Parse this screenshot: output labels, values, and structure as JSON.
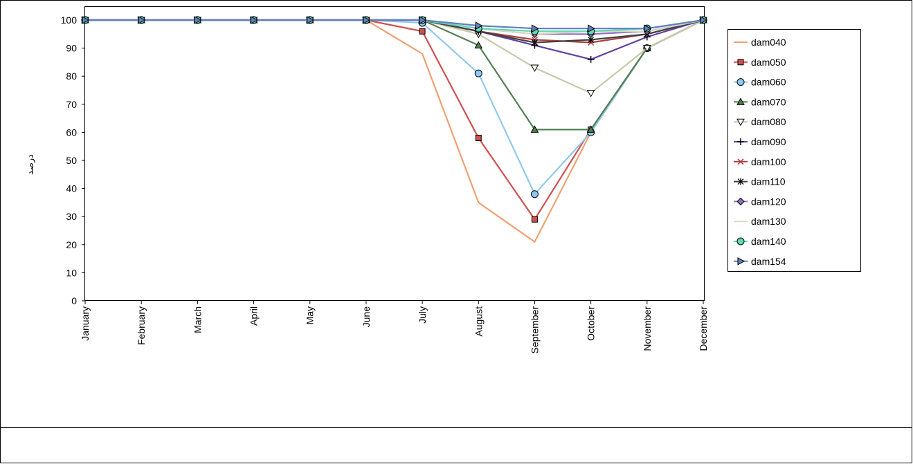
{
  "chart_data": {
    "type": "line",
    "title": "",
    "xlabel": "",
    "ylabel": "درصد",
    "ylim": [
      0,
      100
    ],
    "yticks": [
      0,
      10,
      20,
      30,
      40,
      50,
      60,
      70,
      80,
      90,
      100
    ],
    "grid": false,
    "legend_position": "right",
    "categories": [
      "January",
      "February",
      "March",
      "April",
      "May",
      "June",
      "July",
      "August",
      "September",
      "October",
      "November",
      "December"
    ],
    "series": [
      {
        "name": "dam040",
        "color": "#f0a070",
        "marker": "none",
        "values": [
          100,
          100,
          100,
          100,
          100,
          100,
          88,
          35,
          21,
          60,
          90,
          100
        ]
      },
      {
        "name": "dam050",
        "color": "#d05050",
        "marker": "square",
        "values": [
          100,
          100,
          100,
          100,
          100,
          100,
          96,
          58,
          29,
          61,
          90,
          100
        ]
      },
      {
        "name": "dam060",
        "color": "#90c8f0",
        "marker": "circle",
        "values": [
          100,
          100,
          100,
          100,
          100,
          100,
          99,
          81,
          38,
          60,
          90,
          100
        ]
      },
      {
        "name": "dam070",
        "color": "#508050",
        "marker": "triangle",
        "values": [
          100,
          100,
          100,
          100,
          100,
          100,
          100,
          91,
          61,
          61,
          90,
          100
        ]
      },
      {
        "name": "dam080",
        "color": "#c8c8a8",
        "marker": "triangle-down",
        "values": [
          100,
          100,
          100,
          100,
          100,
          100,
          100,
          95,
          83,
          74,
          90,
          100
        ]
      },
      {
        "name": "dam090",
        "color": "#6040a0",
        "marker": "plus",
        "values": [
          100,
          100,
          100,
          100,
          100,
          100,
          100,
          96,
          91,
          86,
          94,
          100
        ]
      },
      {
        "name": "dam100",
        "color": "#b04040",
        "marker": "x",
        "values": [
          100,
          100,
          100,
          100,
          100,
          100,
          100,
          96,
          93,
          92,
          95,
          100
        ]
      },
      {
        "name": "dam110",
        "color": "#404040",
        "marker": "star",
        "values": [
          100,
          100,
          100,
          100,
          100,
          100,
          100,
          96,
          92,
          93,
          95,
          100
        ]
      },
      {
        "name": "dam120",
        "color": "#9070c0",
        "marker": "diamond",
        "values": [
          100,
          100,
          100,
          100,
          100,
          100,
          100,
          97,
          95,
          95,
          96,
          100
        ]
      },
      {
        "name": "dam130",
        "color": "#d8d8c8",
        "marker": "none",
        "values": [
          100,
          100,
          100,
          100,
          100,
          100,
          100,
          97,
          95,
          96,
          96,
          100
        ]
      },
      {
        "name": "dam140",
        "color": "#60d8b0",
        "marker": "circle",
        "values": [
          100,
          100,
          100,
          100,
          100,
          100,
          100,
          97,
          96,
          96,
          97,
          100
        ]
      },
      {
        "name": "dam154",
        "color": "#6080c0",
        "marker": "triangle-right",
        "values": [
          100,
          100,
          100,
          100,
          100,
          100,
          100,
          98,
          97,
          97,
          97,
          100
        ]
      }
    ]
  }
}
